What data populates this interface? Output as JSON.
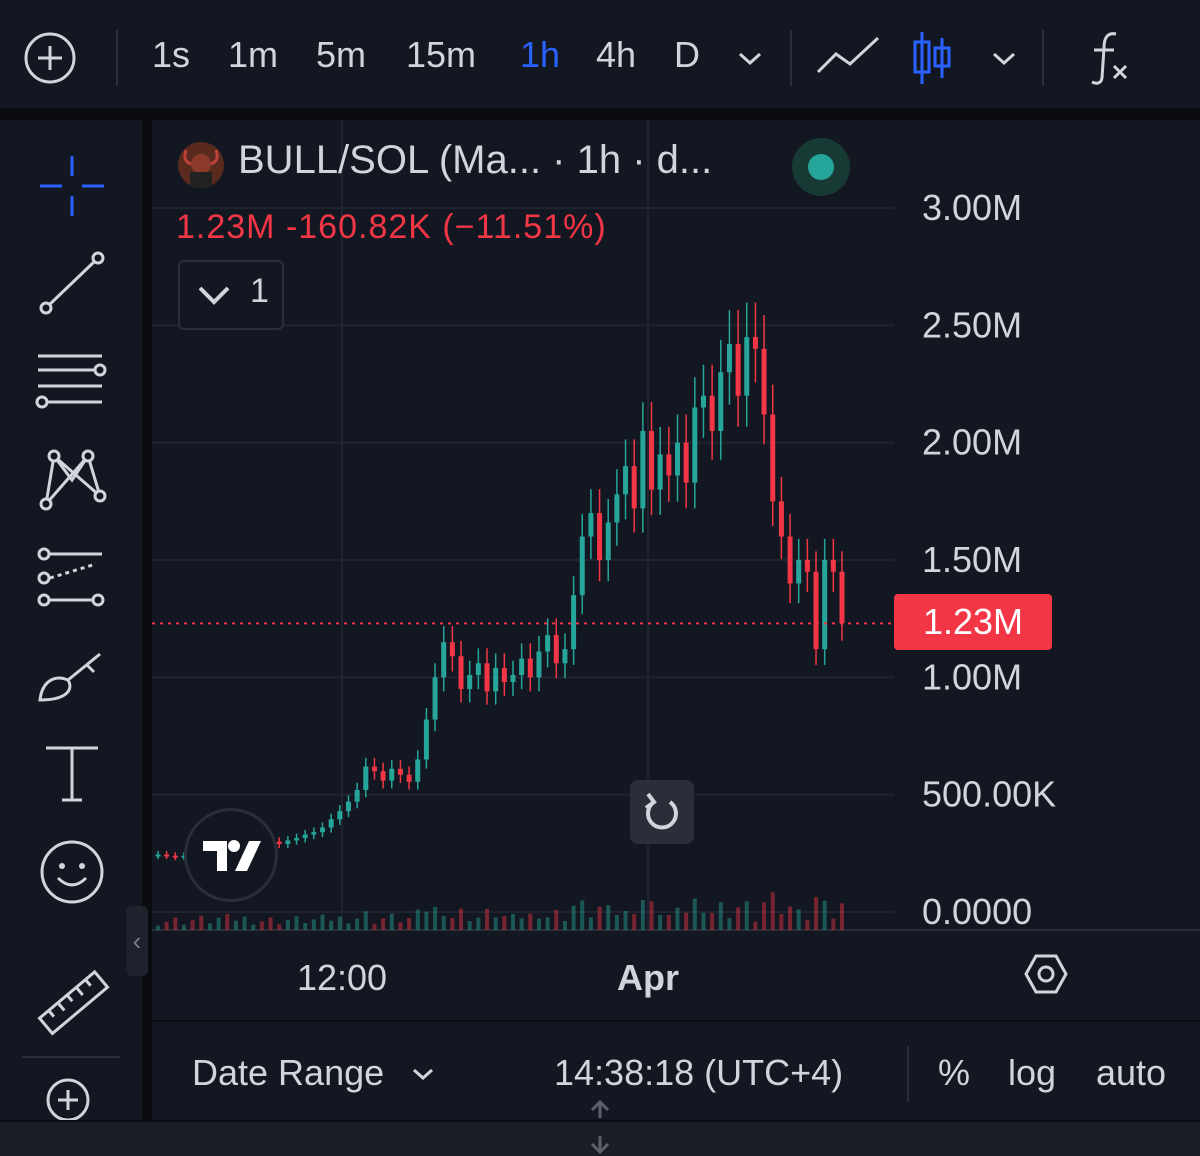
{
  "toolbar": {
    "intervals": [
      "1s",
      "1m",
      "5m",
      "15m",
      "1h",
      "4h",
      "D"
    ],
    "active_interval": "1h",
    "accent_color": "#2962ff"
  },
  "chart": {
    "title": "BULL/SOL (Ma...  · 1h · d...",
    "change_text": "1.23M  -160.82K (−11.51%)",
    "indicators_count": "1",
    "last_price_label": "1.23M",
    "y_ticks": [
      "3.00M",
      "2.50M",
      "2.00M",
      "1.50M",
      "1.00M",
      "500.00K",
      "0.0000"
    ],
    "x_ticks": [
      "12:00",
      "Apr"
    ],
    "up_color": "#26a69a",
    "down_color": "#f23645",
    "status": "online"
  },
  "chart_data": {
    "type": "candlestick",
    "interval": "1h",
    "ylim": [
      0,
      3000000
    ],
    "x_ticks": [
      "12:00",
      "Apr"
    ],
    "y_ticks": [
      "3.00M",
      "2.50M",
      "2.00M",
      "1.50M",
      "1.00M",
      "500.00K",
      "0.0000"
    ],
    "last_value": 1230000,
    "series": [
      {
        "values": [
          245000,
          240000,
          235000,
          240000,
          230000,
          215000,
          225000,
          260000,
          230000,
          265000,
          300000,
          320000,
          310000,
          300000,
          290000,
          305000,
          315000,
          330000,
          340000,
          360000,
          395000,
          430000,
          470000,
          520000,
          620000,
          600000,
          560000,
          610000,
          585000,
          555000,
          650000,
          820000,
          1000000,
          1150000,
          1090000,
          950000,
          1010000,
          1060000,
          940000,
          1040000,
          980000,
          1010000,
          1080000,
          1000000,
          1110000,
          1180000,
          1060000,
          1120000,
          1350000,
          1600000,
          1700000,
          1500000,
          1660000,
          1780000,
          1900000,
          1720000,
          2050000,
          1800000,
          1950000,
          1860000,
          2000000,
          1830000,
          2150000,
          2200000,
          2050000,
          2300000,
          2420000,
          2200000,
          2450000,
          2400000,
          2120000,
          1750000,
          1600000,
          1400000,
          1500000,
          1450000,
          1120000,
          1500000,
          1450000,
          1230000
        ]
      }
    ]
  },
  "sidebar": {
    "tools": [
      "crosshair",
      "trend-line",
      "fib",
      "pattern",
      "prediction",
      "brush",
      "text",
      "emoji",
      "ruler",
      "zoom-in"
    ]
  },
  "bottombar": {
    "date_range": "Date Range",
    "time": "14:38:18 (UTC+4)",
    "percent": "%",
    "log": "log",
    "auto": "auto"
  }
}
